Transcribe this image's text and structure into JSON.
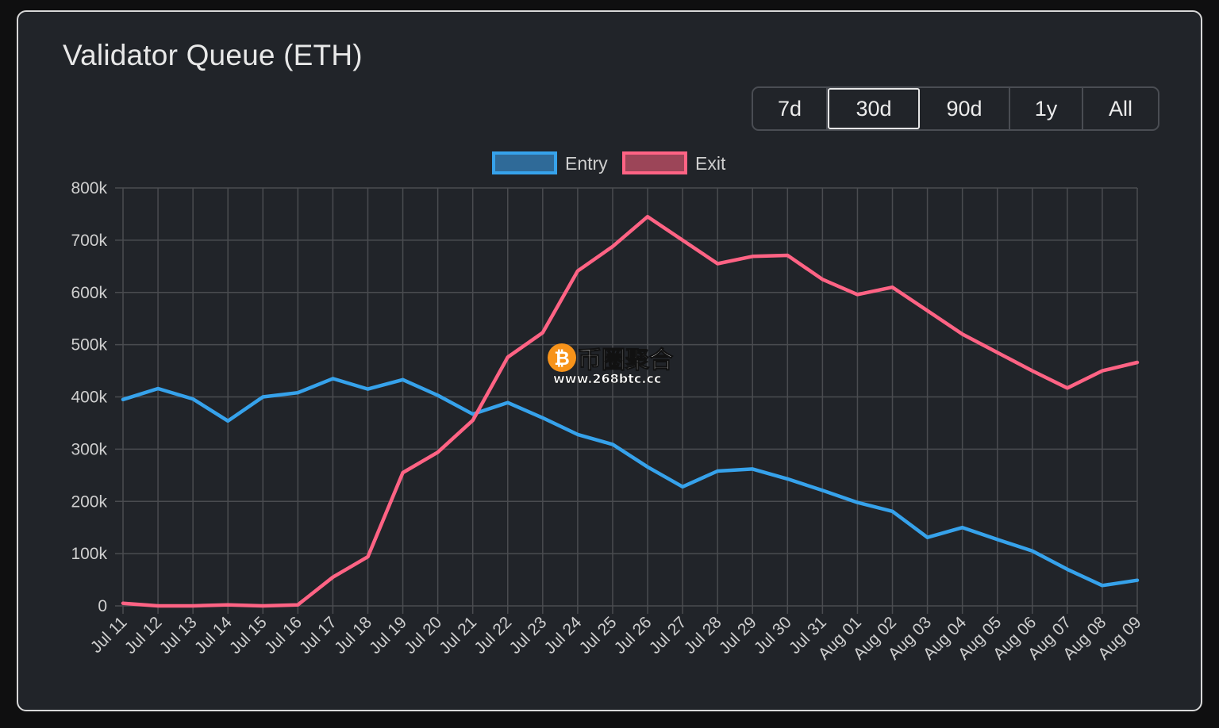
{
  "card": {
    "title": "Validator Queue (ETH)"
  },
  "range": {
    "options": [
      "7d",
      "30d",
      "90d",
      "1y",
      "All"
    ],
    "selected": "30d"
  },
  "watermark": {
    "brand": "币圈聚合",
    "url": "www.268btc.cc",
    "icon": "bitcoin-icon"
  },
  "colors": {
    "entry": "#36a2eb",
    "exit": "#ff6384",
    "grid": "#4a4c50"
  },
  "chart_data": {
    "type": "line",
    "legend_position": "top-center",
    "grid": true,
    "ylim": [
      0,
      800000
    ],
    "yticks": [
      0,
      100000,
      200000,
      300000,
      400000,
      500000,
      600000,
      700000,
      800000
    ],
    "ytick_labels": [
      "0",
      "100k",
      "200k",
      "300k",
      "400k",
      "500k",
      "600k",
      "700k",
      "800k"
    ],
    "categories": [
      "Jul 11",
      "Jul 12",
      "Jul 13",
      "Jul 14",
      "Jul 15",
      "Jul 16",
      "Jul 17",
      "Jul 18",
      "Jul 19",
      "Jul 20",
      "Jul 21",
      "Jul 22",
      "Jul 23",
      "Jul 24",
      "Jul 25",
      "Jul 26",
      "Jul 27",
      "Jul 28",
      "Jul 29",
      "Jul 30",
      "Jul 31",
      "Aug 01",
      "Aug 02",
      "Aug 03",
      "Aug 04",
      "Aug 05",
      "Aug 06",
      "Aug 07",
      "Aug 08",
      "Aug 09"
    ],
    "series": [
      {
        "name": "Entry",
        "color": "#36a2eb",
        "values": [
          395000,
          416000,
          396000,
          354000,
          400000,
          408000,
          435000,
          415000,
          433000,
          403000,
          367000,
          389000,
          360000,
          328000,
          309000,
          266000,
          228000,
          258000,
          262000,
          243000,
          221000,
          198000,
          181000,
          131000,
          150000,
          127000,
          105000,
          70000,
          39000,
          49000
        ]
      },
      {
        "name": "Exit",
        "color": "#ff6384",
        "values": [
          5000,
          0,
          0,
          2000,
          0,
          2000,
          55000,
          94000,
          255000,
          294000,
          355000,
          476000,
          523000,
          641000,
          688000,
          745000,
          700000,
          655000,
          669000,
          671000,
          625000,
          596000,
          610000,
          565000,
          520000,
          485000,
          450000,
          417000,
          450000,
          466000
        ]
      }
    ]
  }
}
